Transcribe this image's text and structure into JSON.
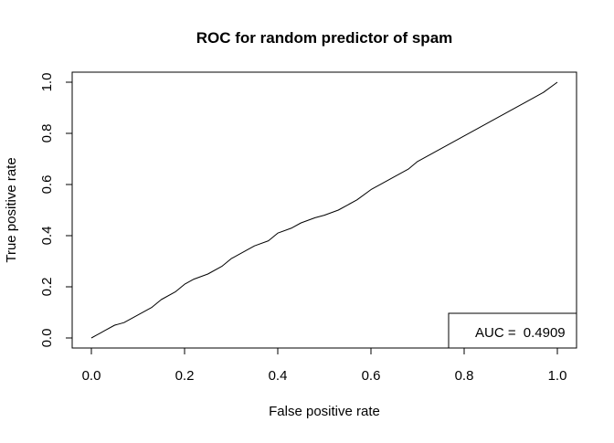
{
  "chart_data": {
    "type": "line",
    "title": "ROC for random predictor of spam",
    "xlabel": "False positive rate",
    "ylabel": "True positive rate",
    "xlim": [
      0,
      1
    ],
    "ylim": [
      0,
      1
    ],
    "x_ticks": [
      0.0,
      0.2,
      0.4,
      0.6,
      0.8,
      1.0
    ],
    "y_ticks": [
      0.0,
      0.2,
      0.4,
      0.6,
      0.8,
      1.0
    ],
    "x_tick_labels": [
      "0.0",
      "0.2",
      "0.4",
      "0.6",
      "0.8",
      "1.0"
    ],
    "y_tick_labels": [
      "0.0",
      "0.2",
      "0.4",
      "0.6",
      "0.8",
      "1.0"
    ],
    "grid": false,
    "legend_position": "bottom-right",
    "annotation": {
      "label": "AUC = ",
      "value": "0.4909"
    },
    "series": [
      {
        "color": "#000000",
        "x": [
          0.0,
          0.01,
          0.02,
          0.03,
          0.05,
          0.07,
          0.1,
          0.13,
          0.15,
          0.18,
          0.2,
          0.22,
          0.25,
          0.28,
          0.3,
          0.33,
          0.35,
          0.38,
          0.4,
          0.43,
          0.45,
          0.48,
          0.5,
          0.53,
          0.55,
          0.57,
          0.6,
          0.63,
          0.65,
          0.68,
          0.7,
          0.73,
          0.75,
          0.78,
          0.8,
          0.83,
          0.85,
          0.88,
          0.9,
          0.93,
          0.95,
          0.97,
          1.0
        ],
        "y": [
          0.0,
          0.01,
          0.02,
          0.03,
          0.05,
          0.06,
          0.09,
          0.12,
          0.15,
          0.18,
          0.21,
          0.23,
          0.25,
          0.28,
          0.31,
          0.34,
          0.36,
          0.38,
          0.41,
          0.43,
          0.45,
          0.47,
          0.48,
          0.5,
          0.52,
          0.54,
          0.58,
          0.61,
          0.63,
          0.66,
          0.69,
          0.72,
          0.74,
          0.77,
          0.79,
          0.82,
          0.84,
          0.87,
          0.89,
          0.92,
          0.94,
          0.96,
          1.0
        ]
      }
    ]
  }
}
